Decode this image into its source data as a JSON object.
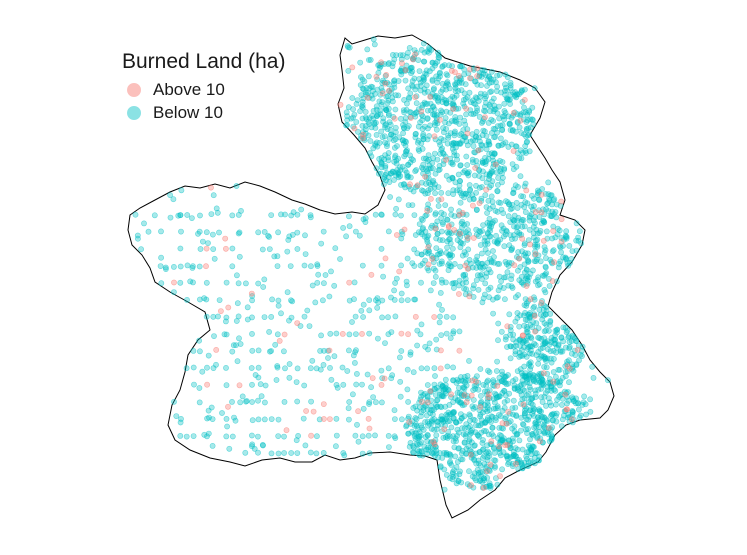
{
  "legend": {
    "title": "Burned Land (ha)",
    "items": [
      {
        "label": "Above 10",
        "color": "#f8766d"
      },
      {
        "label": "Below 10",
        "color": "#00bfc4"
      }
    ]
  },
  "colors": {
    "border": "#000000",
    "background": "#ffffff"
  },
  "chart_data": {
    "type": "scatter",
    "series": [
      {
        "name": "Above 10",
        "color": "#f8766d",
        "opacity": 0.35
      },
      {
        "name": "Below 10",
        "color": "#00bfc4",
        "opacity": 0.35
      }
    ],
    "marker": "filled-circle",
    "point_distribution": "regular grid rows in west/center, dense clusters in north-east and south-east",
    "grid": false,
    "axes": false,
    "legend_position": "top-left"
  }
}
